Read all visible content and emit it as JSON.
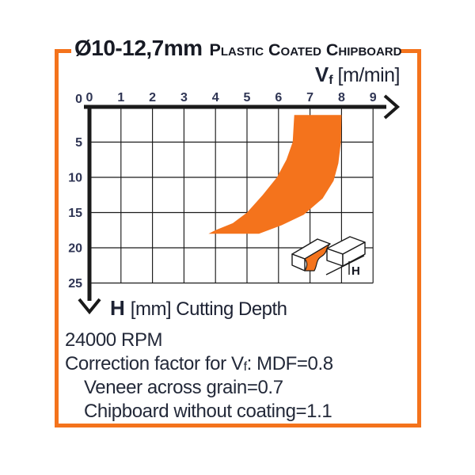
{
  "header": {
    "diameter": "Ø10-12,7mm",
    "material": "Plastic Coated Chipboard"
  },
  "axes": {
    "x_symbol": "V",
    "x_symbol_sub": "f",
    "x_unit": "[m/min]",
    "y_symbol": "H",
    "y_unit_label": "[mm] Cutting Depth"
  },
  "notes": {
    "rpm": "24000 RPM",
    "correction_pre": "Correction factor for V",
    "correction_sub": "f",
    "correction_post": ": MDF=0.8",
    "veneer": "Veneer across grain=0.7",
    "chipboard": "Chipboard without coating=1.1"
  },
  "icon": {
    "depth_label": "H"
  },
  "colors": {
    "accent_orange": "#f4731c",
    "line_black": "#1a1a1a",
    "text_dark": "#232939",
    "tick_label": "#2f3554"
  },
  "chart_data": {
    "type": "area",
    "title": "Ø10-12,7mm Plastic Coated Chipboard",
    "xlabel": "Vf [m/min]",
    "ylabel": "H [mm] Cutting Depth",
    "x_ticks": [
      0,
      1,
      2,
      3,
      4,
      5,
      6,
      7,
      8,
      9
    ],
    "y_ticks": [
      0,
      5,
      10,
      15,
      20,
      25
    ],
    "xlim": [
      0,
      9
    ],
    "ylim": [
      0,
      25
    ],
    "y_axis_direction": "down",
    "grid": true,
    "rpm": 24000,
    "correction_factors": {
      "MDF": 0.8,
      "Veneer across grain": 0.7,
      "Chipboard without coating": 1.1
    },
    "band": {
      "name": "recommended operating zone (Vf vs cutting depth H)",
      "polygon": [
        [
          3.78,
          18.0
        ],
        [
          5.38,
          18.0
        ],
        [
          6.1,
          16.8
        ],
        [
          6.8,
          15.3
        ],
        [
          7.4,
          13.0
        ],
        [
          7.75,
          10.5
        ],
        [
          7.9,
          8.0
        ],
        [
          7.98,
          5.0
        ],
        [
          8.0,
          1.15
        ],
        [
          6.5,
          1.15
        ],
        [
          6.45,
          5.0
        ],
        [
          6.25,
          7.5
        ],
        [
          5.95,
          10.0
        ],
        [
          5.5,
          12.5
        ],
        [
          5.0,
          15.0
        ],
        [
          4.55,
          16.5
        ],
        [
          4.0,
          17.5
        ]
      ],
      "readings": [
        {
          "H": 0,
          "Vf_min": 6.5,
          "Vf_max": 8.0
        },
        {
          "H": 5,
          "Vf_min": 6.45,
          "Vf_max": 7.98
        },
        {
          "H": 10,
          "Vf_min": 5.95,
          "Vf_max": 7.75
        },
        {
          "H": 15,
          "Vf_min": 5.0,
          "Vf_max": 6.9
        },
        {
          "H": 18,
          "Vf_min": 3.78,
          "Vf_max": 5.38
        }
      ]
    }
  }
}
